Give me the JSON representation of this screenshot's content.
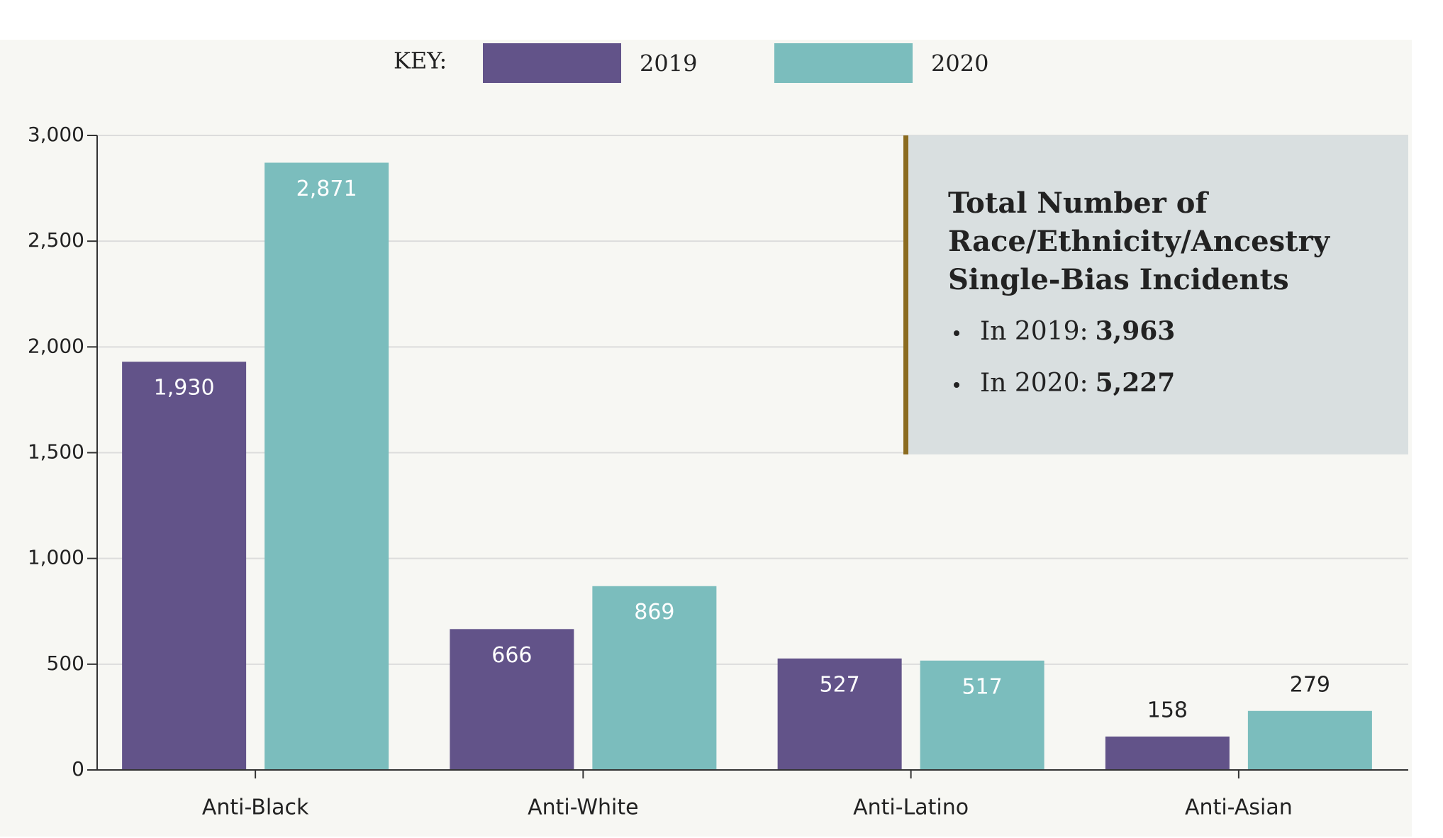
{
  "chart_data": {
    "type": "bar",
    "legend_title": "KEY:",
    "categories": [
      "Anti-Black",
      "Anti-White",
      "Anti-Latino",
      "Anti-Asian"
    ],
    "series": [
      {
        "name": "2019",
        "color": "#625389",
        "values": [
          1930,
          666,
          527,
          158
        ],
        "value_labels": [
          "1,930",
          "666",
          "527",
          "158"
        ]
      },
      {
        "name": "2020",
        "color": "#7bbdbd",
        "values": [
          2871,
          869,
          517,
          279
        ],
        "value_labels": [
          "2,871",
          "869",
          "517",
          "279"
        ]
      }
    ],
    "ylim": [
      0,
      3000
    ],
    "yticks": [
      0,
      500,
      {
        "value": 1000,
        "label": "1,000"
      },
      {
        "value": 1500,
        "label": "1,500"
      },
      {
        "value": 2000,
        "label": "2,000"
      },
      {
        "value": 2500,
        "label": "2,500"
      },
      {
        "value": 3000,
        "label": "3,000"
      }
    ],
    "grid": true,
    "annotation": {
      "title": [
        "Total Number of",
        "Race/Ethnicity/Ancestry",
        "Single-Bias Incidents"
      ],
      "items": [
        {
          "label": "In 2019:",
          "value": "3,963"
        },
        {
          "label": "In 2020:",
          "value": "5,227"
        }
      ]
    }
  }
}
